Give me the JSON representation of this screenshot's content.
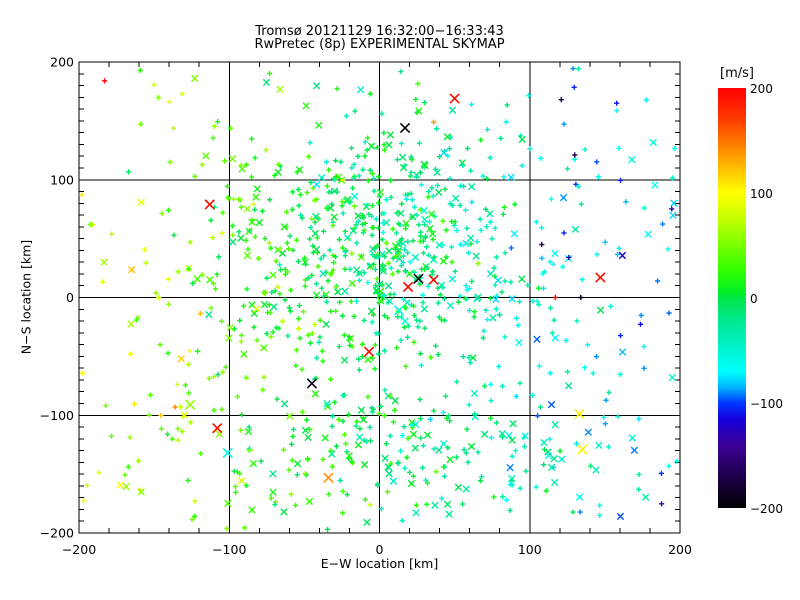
{
  "window": {
    "background": "#FFFFFF",
    "text_color": "#000000"
  },
  "chart_data": {
    "type": "scatter",
    "title_line1": "Tromsø 20121129 16:32:00−16:33:43",
    "title_line2": "RwPretec (8p) EXPERIMENTAL SKYMAP",
    "xlabel": "E−W location [km]",
    "ylabel": "N−S location [km]",
    "xlim": [
      -200,
      200
    ],
    "ylim": [
      -200,
      200
    ],
    "grid": true,
    "x_ticks": {
      "values": [
        -200,
        -100,
        0,
        100,
        200
      ],
      "labels": [
        "−200",
        "−100",
        "0",
        "100",
        "200"
      ],
      "minor_step": 20
    },
    "y_ticks": {
      "values": [
        -200,
        -100,
        0,
        100,
        200
      ],
      "labels": [
        "−200",
        "−100",
        "0",
        "100",
        "200"
      ],
      "minor_step": 10
    },
    "marker_types": {
      "plus": "+",
      "cross": "x"
    },
    "colorbar": {
      "label": "[m/s]",
      "range": [
        -200,
        200
      ],
      "ticks": [
        {
          "v": 200,
          "label": "200"
        },
        {
          "v": 100,
          "label": "100"
        },
        {
          "v": 0,
          "label": "0"
        },
        {
          "v": -100,
          "label": "−100"
        },
        {
          "v": -200,
          "label": "−200"
        }
      ],
      "stops": [
        [
          200,
          "#FF0000"
        ],
        [
          170,
          "#FF3C00"
        ],
        [
          145,
          "#FF8200"
        ],
        [
          120,
          "#FFC800"
        ],
        [
          100,
          "#FFFF00"
        ],
        [
          75,
          "#C3FF00"
        ],
        [
          50,
          "#78FF00"
        ],
        [
          25,
          "#2EFF00"
        ],
        [
          5,
          "#00F028"
        ],
        [
          0,
          "#00E646"
        ],
        [
          -20,
          "#00E88C"
        ],
        [
          -45,
          "#00F2C8"
        ],
        [
          -70,
          "#00FFFF"
        ],
        [
          -85,
          "#00B4FF"
        ],
        [
          -100,
          "#0037FF"
        ],
        [
          -115,
          "#1400DC"
        ],
        [
          -140,
          "#3C0096"
        ],
        [
          -170,
          "#1E004B"
        ],
        [
          -200,
          "#000000"
        ]
      ]
    },
    "notable_points": [
      {
        "x": 50,
        "y": 169,
        "v": 195,
        "m": "x"
      },
      {
        "x": 17,
        "y": 144,
        "v": -195,
        "m": "x"
      },
      {
        "x": -113,
        "y": 79,
        "v": 195,
        "m": "x"
      },
      {
        "x": 26,
        "y": 16,
        "v": -190,
        "m": "x"
      },
      {
        "x": 36,
        "y": 15,
        "v": 195,
        "m": "x"
      },
      {
        "x": 19,
        "y": 9,
        "v": 195,
        "m": "x"
      },
      {
        "x": 13,
        "y": -11,
        "v": -60,
        "m": "x"
      },
      {
        "x": -7,
        "y": -46,
        "v": 195,
        "m": "x"
      },
      {
        "x": -45,
        "y": -73,
        "v": -190,
        "m": "x"
      },
      {
        "x": -108,
        "y": -111,
        "v": 195,
        "m": "x"
      },
      {
        "x": -34,
        "y": -153,
        "v": 140,
        "m": "x"
      },
      {
        "x": 133,
        "y": -99,
        "v": 105,
        "m": "x"
      },
      {
        "x": 135,
        "y": -129,
        "v": 105,
        "m": "x"
      },
      {
        "x": 147,
        "y": 17,
        "v": 195,
        "m": "x"
      },
      {
        "x": -101,
        "y": -132,
        "v": -60,
        "m": "x"
      },
      {
        "x": -126,
        "y": -91,
        "v": 60,
        "m": "x"
      },
      {
        "x": 117,
        "y": 0,
        "v": 195,
        "m": "+"
      },
      {
        "x": 134,
        "y": 0,
        "v": -190,
        "m": "+"
      },
      {
        "x": 108,
        "y": 45,
        "v": -170,
        "m": "+"
      },
      {
        "x": 126,
        "y": 34,
        "v": -130,
        "m": "+"
      },
      {
        "x": -183,
        "y": 184,
        "v": 200,
        "m": "+"
      },
      {
        "x": 36,
        "y": 149,
        "v": 140,
        "m": "+"
      },
      {
        "x": 121,
        "y": 168,
        "v": -170,
        "m": "+"
      },
      {
        "x": 130,
        "y": 121,
        "v": -170,
        "m": "+"
      },
      {
        "x": -136,
        "y": -93,
        "v": 140,
        "m": "+"
      }
    ],
    "point_cloud": {
      "seed": 20121129,
      "clusters": [
        {
          "type": "gauss",
          "n": 460,
          "cx": -5,
          "cy": 45,
          "sx": 52,
          "sy": 48,
          "v_base": -8,
          "v_slope": -0.3,
          "v_sigma": 24,
          "cross_frac": 0.22
        },
        {
          "type": "gauss",
          "n": 310,
          "cx": 0,
          "cy": -10,
          "sx": 100,
          "sy": 95,
          "v_base": -5,
          "v_slope": -0.45,
          "v_sigma": 26,
          "cross_frac": 0.2
        },
        {
          "type": "gauss",
          "n": 175,
          "cx": 0,
          "cy": -130,
          "sx": 80,
          "sy": 35,
          "v_base": -2,
          "v_slope": -0.3,
          "v_sigma": 22,
          "cross_frac": 0.35
        },
        {
          "type": "uniform",
          "n": 200,
          "x0": -197,
          "x1": 197,
          "y0": -197,
          "y1": 197,
          "v_base": 0,
          "v_slope": -0.45,
          "v_sigma": 30,
          "cross_frac": 0.18
        }
      ]
    }
  }
}
